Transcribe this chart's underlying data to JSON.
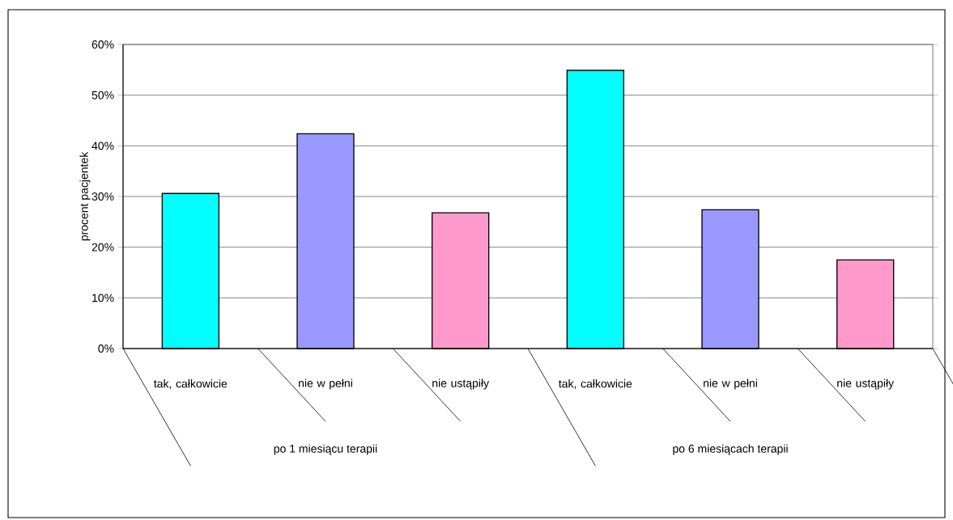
{
  "chart_data": {
    "type": "bar",
    "ylabel": "procent pacjentek",
    "categories": [
      "tak, całkowicie",
      "nie w pełni",
      "nie ustąpiły",
      "tak, całkowicie",
      "nie w pełni",
      "nie ustąpiły"
    ],
    "values": [
      30.6,
      42.4,
      26.8,
      54.9,
      27.4,
      17.5
    ],
    "colors": [
      "#00ffff",
      "#9999ff",
      "#ff99cc",
      "#00ffff",
      "#9999ff",
      "#ff99cc"
    ],
    "ylim": [
      0,
      60
    ],
    "yticks": [
      {
        "value": 0,
        "label": "0%"
      },
      {
        "value": 10,
        "label": "10%"
      },
      {
        "value": 20,
        "label": "20%"
      },
      {
        "value": 30,
        "label": "30%"
      },
      {
        "value": 40,
        "label": "40%"
      },
      {
        "value": 50,
        "label": "50%"
      },
      {
        "value": 60,
        "label": "60%"
      }
    ],
    "grid": "y",
    "annotations": [
      "po 1 miesiącu terapii",
      "po 6 miesiącach terapii"
    ]
  }
}
